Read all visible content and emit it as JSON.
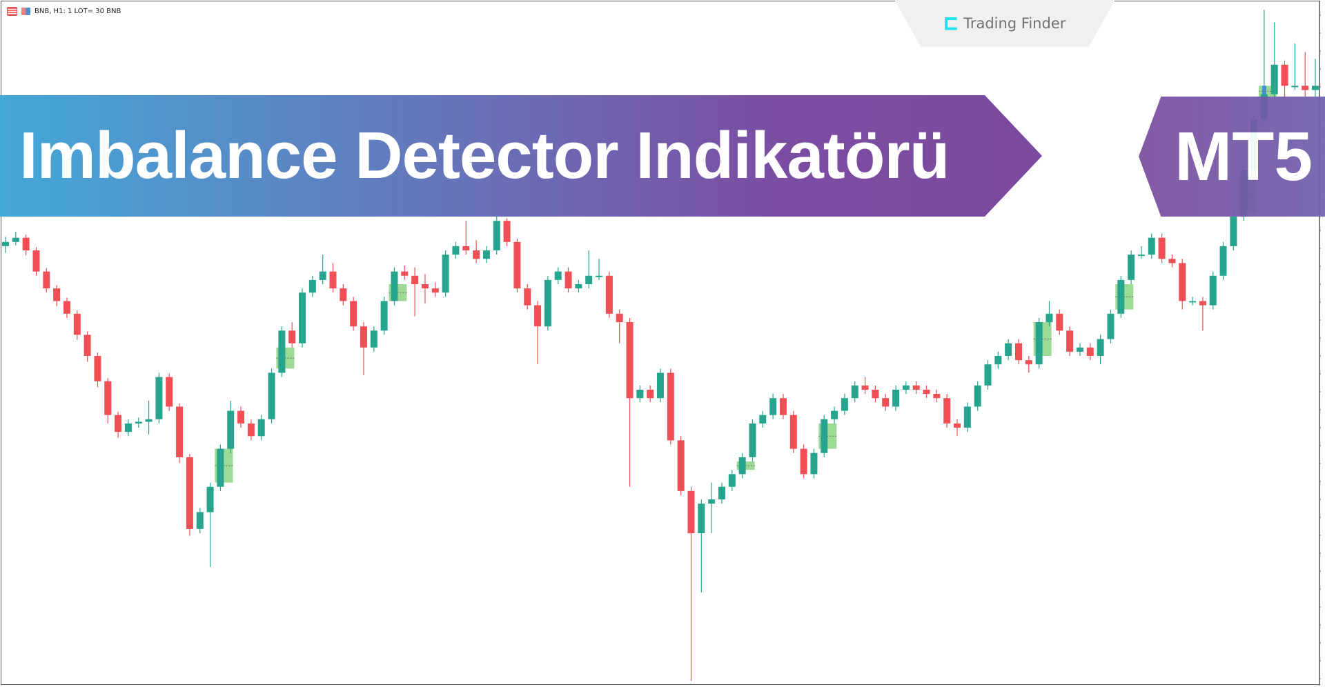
{
  "header": {
    "symbol_info": "BNB, H1:  1 LOT= 30 BNB",
    "icons": [
      "grid-icon",
      "indicator-icon"
    ]
  },
  "logo": {
    "mark": "tc",
    "text": "Trading Finder"
  },
  "banner": {
    "title": "Imbalance Detector Indikatörü",
    "badge": "MT5"
  },
  "colors": {
    "bull": "#26a48e",
    "bear": "#ef4f55",
    "zone": "#92d68a",
    "zone_core": "#4e8be8",
    "level": "#f5a300",
    "banner_start": "#43a8d8",
    "banner_end": "#7b4a9e"
  },
  "chart_data": {
    "type": "candlestick",
    "ylim": [
      0,
      813
    ],
    "grid": false,
    "ohlc": [
      [
        523,
        534,
        515,
        528
      ],
      [
        528,
        540,
        524,
        533
      ],
      [
        533,
        537,
        512,
        518
      ],
      [
        518,
        522,
        488,
        493
      ],
      [
        493,
        497,
        468,
        473
      ],
      [
        473,
        477,
        452,
        458
      ],
      [
        458,
        462,
        438,
        443
      ],
      [
        443,
        447,
        412,
        418
      ],
      [
        418,
        422,
        386,
        393
      ],
      [
        393,
        397,
        356,
        363
      ],
      [
        363,
        367,
        313,
        323
      ],
      [
        323,
        327,
        296,
        303
      ],
      [
        303,
        318,
        298,
        313
      ],
      [
        313,
        320,
        308,
        315
      ],
      [
        315,
        340,
        300,
        318
      ],
      [
        318,
        373,
        313,
        368
      ],
      [
        368,
        372,
        328,
        333
      ],
      [
        333,
        337,
        266,
        273
      ],
      [
        273,
        277,
        180,
        188
      ],
      [
        188,
        213,
        183,
        208
      ],
      [
        208,
        243,
        143,
        238
      ],
      [
        238,
        288,
        233,
        283
      ],
      [
        283,
        340,
        278,
        328
      ],
      [
        328,
        333,
        308,
        313
      ],
      [
        313,
        318,
        293,
        298
      ],
      [
        298,
        323,
        293,
        318
      ],
      [
        318,
        378,
        313,
        373
      ],
      [
        373,
        428,
        368,
        423
      ],
      [
        423,
        433,
        403,
        408
      ],
      [
        408,
        473,
        403,
        468
      ],
      [
        468,
        488,
        463,
        483
      ],
      [
        483,
        513,
        478,
        493
      ],
      [
        493,
        503,
        468,
        473
      ],
      [
        473,
        478,
        453,
        458
      ],
      [
        458,
        463,
        423,
        428
      ],
      [
        428,
        433,
        370,
        403
      ],
      [
        403,
        428,
        398,
        423
      ],
      [
        423,
        463,
        418,
        458
      ],
      [
        458,
        498,
        453,
        493
      ],
      [
        493,
        500,
        483,
        488
      ],
      [
        488,
        498,
        440,
        478
      ],
      [
        478,
        490,
        455,
        473
      ],
      [
        473,
        480,
        463,
        468
      ],
      [
        468,
        518,
        463,
        513
      ],
      [
        513,
        528,
        508,
        523
      ],
      [
        523,
        553,
        513,
        518
      ],
      [
        518,
        530,
        503,
        508
      ],
      [
        508,
        523,
        503,
        518
      ],
      [
        518,
        558,
        513,
        553
      ],
      [
        553,
        556,
        523,
        528
      ],
      [
        528,
        532,
        468,
        473
      ],
      [
        473,
        478,
        448,
        453
      ],
      [
        453,
        458,
        383,
        428
      ],
      [
        428,
        488,
        423,
        483
      ],
      [
        483,
        498,
        478,
        493
      ],
      [
        493,
        498,
        468,
        473
      ],
      [
        473,
        483,
        468,
        478
      ],
      [
        478,
        518,
        473,
        488
      ],
      [
        488,
        508,
        483,
        488
      ],
      [
        488,
        493,
        438,
        443
      ],
      [
        443,
        448,
        408,
        433
      ],
      [
        433,
        438,
        238,
        343
      ],
      [
        343,
        358,
        338,
        353
      ],
      [
        353,
        358,
        338,
        343
      ],
      [
        343,
        378,
        338,
        373
      ],
      [
        373,
        378,
        288,
        293
      ],
      [
        293,
        298,
        228,
        233
      ],
      [
        233,
        238,
        8,
        183
      ],
      [
        183,
        223,
        113,
        218
      ],
      [
        218,
        243,
        183,
        223
      ],
      [
        223,
        243,
        218,
        238
      ],
      [
        238,
        258,
        233,
        253
      ],
      [
        253,
        278,
        248,
        273
      ],
      [
        273,
        318,
        268,
        313
      ],
      [
        313,
        328,
        308,
        323
      ],
      [
        323,
        348,
        318,
        343
      ],
      [
        343,
        348,
        318,
        323
      ],
      [
        323,
        328,
        278,
        283
      ],
      [
        283,
        288,
        248,
        253
      ],
      [
        253,
        283,
        248,
        278
      ],
      [
        278,
        323,
        273,
        318
      ],
      [
        318,
        333,
        313,
        328
      ],
      [
        328,
        348,
        323,
        343
      ],
      [
        343,
        363,
        338,
        358
      ],
      [
        358,
        368,
        348,
        353
      ],
      [
        353,
        358,
        338,
        343
      ],
      [
        343,
        348,
        328,
        333
      ],
      [
        333,
        358,
        328,
        353
      ],
      [
        353,
        363,
        348,
        358
      ],
      [
        358,
        363,
        348,
        353
      ],
      [
        353,
        358,
        343,
        348
      ],
      [
        348,
        353,
        338,
        343
      ],
      [
        343,
        348,
        308,
        313
      ],
      [
        313,
        318,
        298,
        308
      ],
      [
        308,
        338,
        303,
        333
      ],
      [
        333,
        363,
        328,
        358
      ],
      [
        358,
        388,
        353,
        383
      ],
      [
        383,
        398,
        378,
        393
      ],
      [
        393,
        413,
        388,
        408
      ],
      [
        408,
        413,
        383,
        388
      ],
      [
        388,
        393,
        373,
        383
      ],
      [
        383,
        438,
        378,
        433
      ],
      [
        433,
        458,
        428,
        443
      ],
      [
        443,
        448,
        418,
        423
      ],
      [
        423,
        428,
        393,
        398
      ],
      [
        398,
        408,
        393,
        403
      ],
      [
        403,
        408,
        388,
        393
      ],
      [
        393,
        418,
        383,
        413
      ],
      [
        413,
        448,
        408,
        443
      ],
      [
        443,
        488,
        438,
        483
      ],
      [
        483,
        518,
        478,
        513
      ],
      [
        513,
        523,
        508,
        513
      ],
      [
        513,
        538,
        508,
        533
      ],
      [
        533,
        538,
        503,
        508
      ],
      [
        508,
        513,
        498,
        503
      ],
      [
        503,
        508,
        448,
        458
      ],
      [
        458,
        463,
        453,
        458
      ],
      [
        458,
        463,
        423,
        453
      ],
      [
        453,
        493,
        448,
        488
      ],
      [
        488,
        528,
        483,
        523
      ],
      [
        523,
        563,
        518,
        558
      ],
      [
        558,
        618,
        553,
        613
      ],
      [
        613,
        678,
        608,
        673
      ],
      [
        673,
        803,
        668,
        703
      ],
      [
        703,
        788,
        698,
        738
      ],
      [
        738,
        743,
        698,
        713
      ],
      [
        713,
        763,
        708,
        713
      ],
      [
        713,
        753,
        700,
        708
      ],
      [
        708,
        745,
        700,
        713
      ]
    ],
    "imbalance_zones": [
      {
        "candle": 21,
        "low": 243,
        "high": 283
      },
      {
        "candle": 27,
        "low": 378,
        "high": 403
      },
      {
        "candle": 38,
        "low": 458,
        "high": 478
      },
      {
        "candle": 72,
        "low": 258,
        "high": 268
      },
      {
        "candle": 80,
        "low": 283,
        "high": 313
      },
      {
        "candle": 101,
        "low": 393,
        "high": 433
      },
      {
        "candle": 109,
        "low": 448,
        "high": 478
      },
      {
        "candle": 121,
        "low": 563,
        "high": 608
      },
      {
        "candle": 123,
        "low": 700,
        "high": 713
      }
    ]
  }
}
